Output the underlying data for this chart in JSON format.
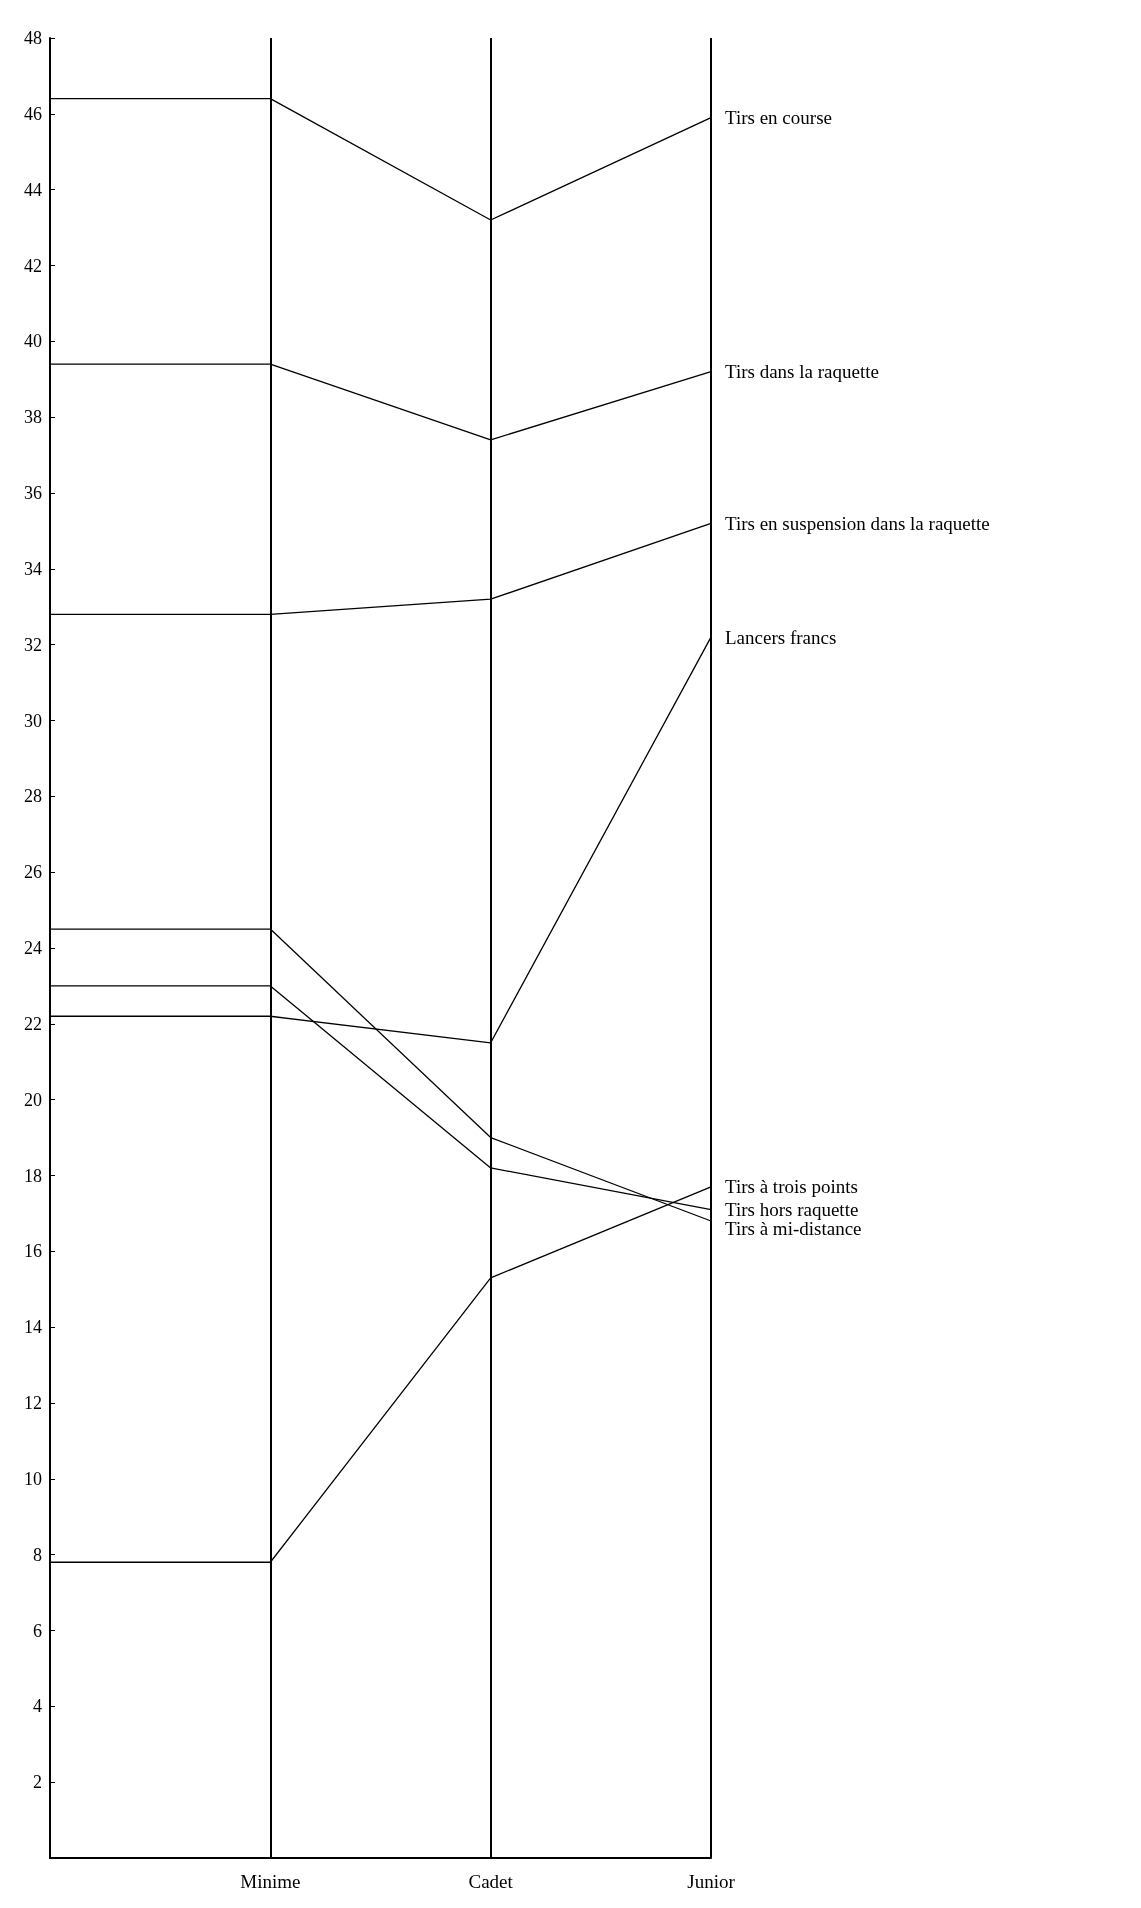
{
  "chart_data": {
    "type": "line",
    "categories": [
      null,
      "Minime",
      "Cadet",
      "Junior"
    ],
    "series": [
      {
        "name": "Tirs en course",
        "color": "#000000",
        "values": [
          46.4,
          46.4,
          43.2,
          45.9
        ]
      },
      {
        "name": "Tirs dans la raquette",
        "color": "#000000",
        "values": [
          39.4,
          39.4,
          37.4,
          39.2
        ]
      },
      {
        "name": "Tirs en suspension dans la raquette",
        "color": "#000000",
        "values": [
          32.8,
          32.8,
          33.2,
          35.2
        ]
      },
      {
        "name": "Lancers francs",
        "color": "#000000",
        "values": [
          22.2,
          22.2,
          21.5,
          32.2
        ]
      },
      {
        "name": "Tirs à trois points",
        "color": "#000000",
        "values": [
          7.8,
          7.8,
          15.3,
          17.7
        ]
      },
      {
        "name": "Tirs hors raquette",
        "color": "#000000",
        "values": [
          23.0,
          23.0,
          18.2,
          17.1
        ]
      },
      {
        "name": "Tirs à mi-distance",
        "color": "#000000",
        "values": [
          24.5,
          24.5,
          19.0,
          16.8
        ]
      }
    ],
    "ylim": [
      0,
      48
    ],
    "yticks": [
      2,
      4,
      6,
      8,
      10,
      12,
      14,
      16,
      18,
      20,
      22,
      24,
      26,
      28,
      30,
      32,
      34,
      36,
      38,
      40,
      42,
      44,
      46,
      48
    ],
    "grid": "x",
    "marker": "none",
    "line_style": "solid",
    "legend": false
  }
}
